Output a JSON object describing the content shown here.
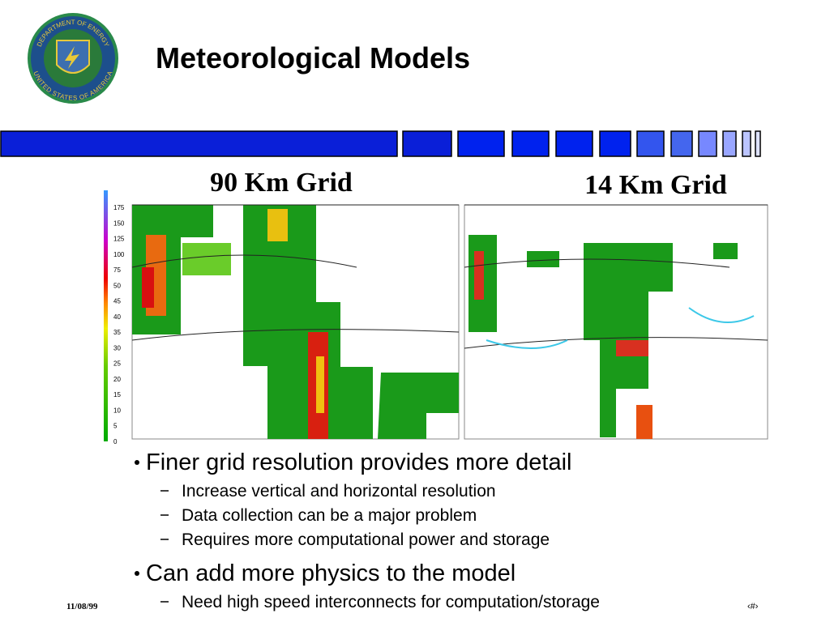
{
  "logo": {
    "top": "DEPARTMENT OF ENERGY",
    "bottom": "UNITED STATES OF AMERICA"
  },
  "header": {
    "title": "Meteorological Models"
  },
  "maps": [
    {
      "label": "90 Km Grid"
    },
    {
      "label": "14 Km Grid"
    }
  ],
  "colorbar": {
    "labels": [
      "175",
      "150",
      "125",
      "100",
      "75",
      "50",
      "45",
      "40",
      "35",
      "30",
      "25",
      "20",
      "15",
      "10",
      "5",
      "0"
    ]
  },
  "bullets": [
    {
      "text": "Finer grid resolution provides more detail",
      "items": [
        "Increase vertical and horizontal resolution",
        "Data collection can be a major problem",
        "Requires more computational power and storage"
      ]
    },
    {
      "text": "Can add more physics to the model",
      "items": [
        "Need high speed interconnects for computation/storage"
      ]
    }
  ],
  "footer": {
    "date": "11/08/99",
    "slide_number": "‹#›"
  }
}
